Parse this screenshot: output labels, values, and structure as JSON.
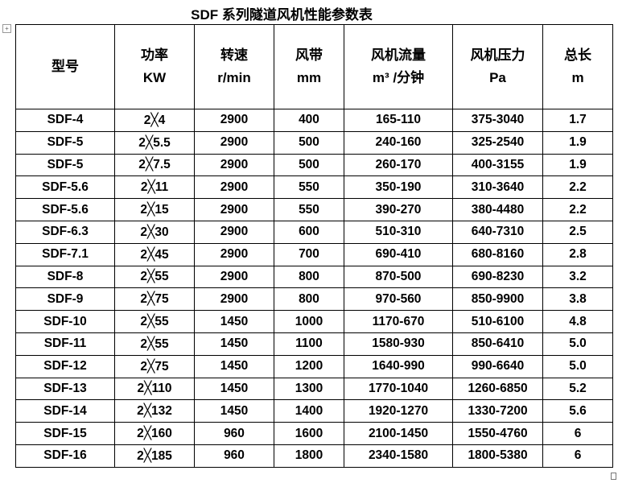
{
  "title": "SDF 系列隧道风机性能参数表",
  "headers": [
    {
      "name": "型号",
      "unit": ""
    },
    {
      "name": "功率",
      "unit": "KW"
    },
    {
      "name": "转速",
      "unit": "r/min"
    },
    {
      "name": "风带",
      "unit": "mm"
    },
    {
      "name": "风机流量",
      "unit": "m³ /分钟"
    },
    {
      "name": "风机压力",
      "unit": "Pa"
    },
    {
      "name": "总长",
      "unit": "m"
    }
  ],
  "rows": [
    [
      "SDF-4",
      "2╳4",
      "2900",
      "400",
      "165-110",
      "375-3040",
      "1.7"
    ],
    [
      "SDF-5",
      "2╳5.5",
      "2900",
      "500",
      "240-160",
      "325-2540",
      "1.9"
    ],
    [
      "SDF-5",
      "2╳7.5",
      "2900",
      "500",
      "260-170",
      "400-3155",
      "1.9"
    ],
    [
      "SDF-5.6",
      "2╳11",
      "2900",
      "550",
      "350-190",
      "310-3640",
      "2.2"
    ],
    [
      "SDF-5.6",
      "2╳15",
      "2900",
      "550",
      "390-270",
      "380-4480",
      "2.2"
    ],
    [
      "SDF-6.3",
      "2╳30",
      "2900",
      "600",
      "510-310",
      "640-7310",
      "2.5"
    ],
    [
      "SDF-7.1",
      "2╳45",
      "2900",
      "700",
      "690-410",
      "680-8160",
      "2.8"
    ],
    [
      "SDF-8",
      "2╳55",
      "2900",
      "800",
      "870-500",
      "690-8230",
      "3.2"
    ],
    [
      "SDF-9",
      "2╳75",
      "2900",
      "800",
      "970-560",
      "850-9900",
      "3.8"
    ],
    [
      "SDF-10",
      "2╳55",
      "1450",
      "1000",
      "1170-670",
      "510-6100",
      "4.8"
    ],
    [
      "SDF-11",
      "2╳55",
      "1450",
      "1100",
      "1580-930",
      "850-6410",
      "5.0"
    ],
    [
      "SDF-12",
      "2╳75",
      "1450",
      "1200",
      "1640-990",
      "990-6640",
      "5.0"
    ],
    [
      "SDF-13",
      "2╳110",
      "1450",
      "1300",
      "1770-1040",
      "1260-6850",
      "5.2"
    ],
    [
      "SDF-14",
      "2╳132",
      "1450",
      "1400",
      "1920-1270",
      "1330-7200",
      "5.6"
    ],
    [
      "SDF-15",
      "2╳160",
      "960",
      "1600",
      "2100-1450",
      "1550-4760",
      "6"
    ],
    [
      "SDF-16",
      "2╳185",
      "960",
      "1800",
      "2340-1580",
      "1800-5380",
      "6"
    ]
  ]
}
